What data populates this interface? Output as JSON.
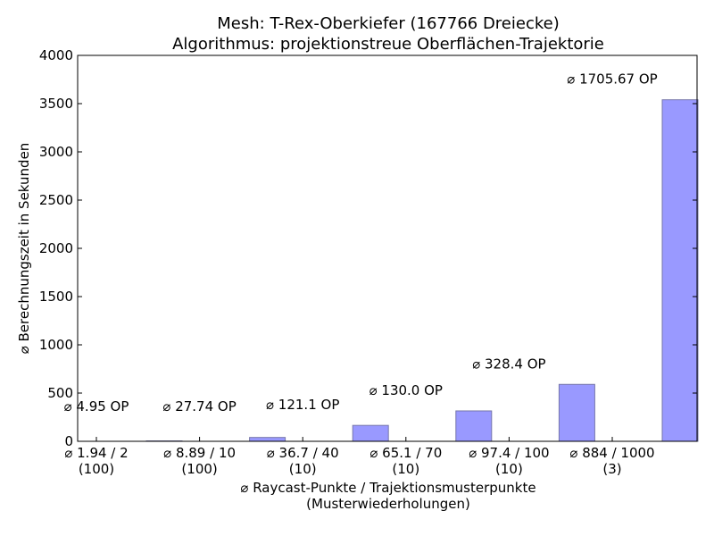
{
  "chart_data": {
    "type": "bar",
    "title": [
      "Mesh: T-Rex-Oberkiefer (167766 Dreiecke)",
      "Algorithmus: projektionstreue Oberflächen-Trajektorie"
    ],
    "xlabel": [
      "⌀ Raycast-Punkte / Trajektionsmusterpunkte",
      "(Musterwiederholungen)"
    ],
    "ylabel": "⌀ Berechnungszeit in Sekunden",
    "ylim": [
      0,
      4000
    ],
    "yticks": [
      0,
      500,
      1000,
      1500,
      2000,
      2500,
      3000,
      3500,
      4000
    ],
    "grid": false,
    "categories": [
      [
        "⌀ 1.94 / 2",
        "(100)"
      ],
      [
        "⌀ 8.89 / 10",
        "(100)"
      ],
      [
        "⌀ 36.7 / 40",
        "(10)"
      ],
      [
        "⌀ 65.1 / 70",
        "(10)"
      ],
      [
        "⌀ 97.4 / 100",
        "(10)"
      ],
      [
        "⌀ 884 / 1000",
        "(3)"
      ]
    ],
    "values": [
      4,
      40,
      165,
      315,
      590,
      3540
    ],
    "data_labels": [
      "⌀ 4.95 OP",
      "⌀ 27.74 OP",
      "⌀ 121.1 OP",
      "⌀ 130.0 OP",
      "⌀ 328.4 OP",
      "⌀ 1705.67 OP"
    ],
    "bar_color": "#9999ff",
    "bar_edge_color": "#7777aa"
  }
}
